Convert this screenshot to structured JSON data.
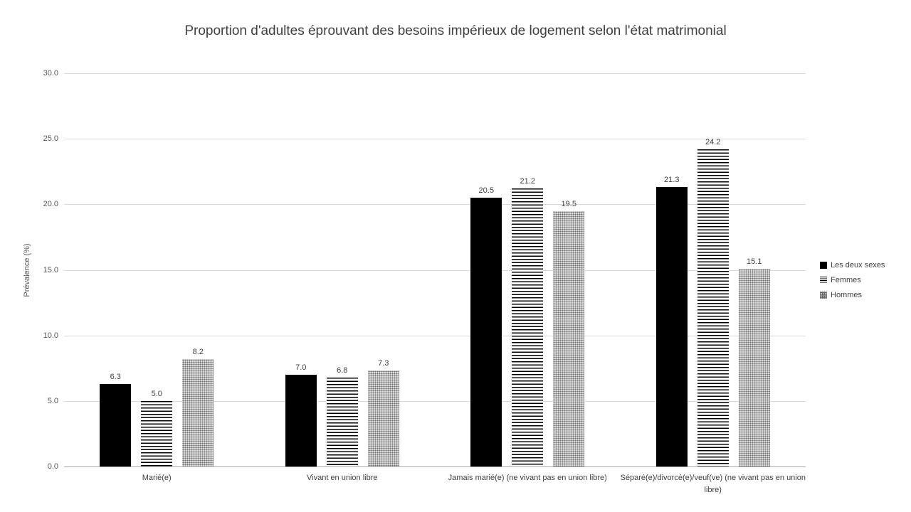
{
  "chart_data": {
    "type": "bar",
    "title": "Proportion d'adultes éprouvant des besoins impérieux de logement selon l'état matrimonial",
    "categories": [
      "Marié(e)",
      "Vivant en union libre",
      "Jamais marié(e) (ne vivant pas en union libre)",
      "Séparé(e)/divorcé(e)/veuf(ve) (ne vivant pas en union libre)"
    ],
    "series": [
      {
        "name": "Les deux sexes",
        "fill": "solid-black",
        "values": [
          6.3,
          7.0,
          20.5,
          21.3
        ]
      },
      {
        "name": "Femmes",
        "fill": "horizontal-stripes",
        "values": [
          5.0,
          6.8,
          21.2,
          24.2
        ]
      },
      {
        "name": "Hommes",
        "fill": "gray-dots",
        "values": [
          8.2,
          7.3,
          19.5,
          15.1
        ]
      }
    ],
    "xlabel": "",
    "ylabel": "Prévalence (%)",
    "ylim": [
      0,
      30
    ],
    "ytick_step": 5,
    "ytick_labels": [
      "0.0",
      "5.0",
      "10.0",
      "15.0",
      "20.0",
      "25.0",
      "30.0"
    ],
    "grid": true,
    "legend_position": "right",
    "value_labels": true,
    "value_label_decimals": 1
  },
  "colors": {
    "bar_black": "#000000",
    "pattern_dot_gray": "#6b6b6b",
    "gridline": "#d9d9d9",
    "axis_line": "#a6a6a6",
    "title_text": "#404040",
    "tick_text": "#595959"
  }
}
